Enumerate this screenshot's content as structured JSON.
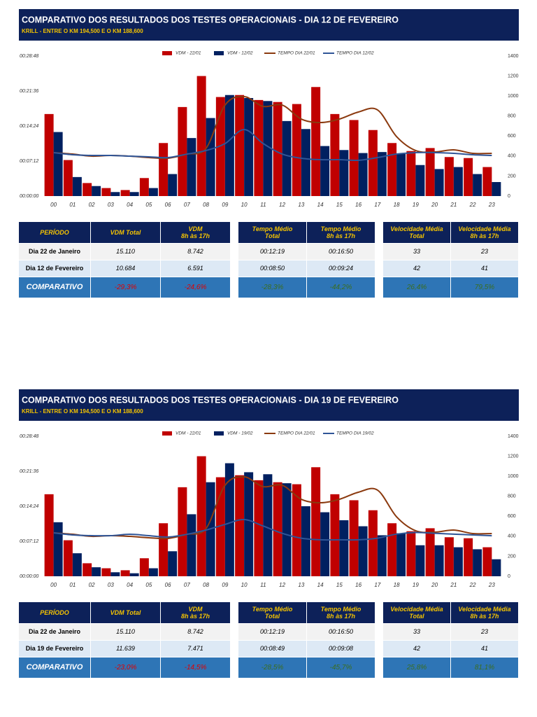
{
  "chart_data": [
    {
      "type": "bar",
      "title": "COMPARATIVO DOS RESULTADOS DOS TESTES OPERACIONAIS - DIA 12 DE FEVEREIRO",
      "subtitle": "KRILL - ENTRE O KM 194,500 E O  KM 188,600",
      "categories": [
        "00",
        "01",
        "02",
        "03",
        "04",
        "05",
        "06",
        "07",
        "08",
        "09",
        "10",
        "11",
        "12",
        "13",
        "14",
        "15",
        "16",
        "17",
        "18",
        "19",
        "20",
        "21",
        "22",
        "23"
      ],
      "series": [
        {
          "name": "VDM - 22/01",
          "type": "bar",
          "axis": "y2",
          "color": "#c00000",
          "values": [
            820,
            360,
            130,
            80,
            60,
            180,
            530,
            890,
            1200,
            990,
            1010,
            960,
            940,
            920,
            1090,
            820,
            760,
            660,
            530,
            450,
            480,
            390,
            380,
            290
          ]
        },
        {
          "name": "VDM - 12/02",
          "type": "bar",
          "axis": "y2",
          "color": "#002060",
          "values": [
            640,
            190,
            100,
            40,
            40,
            80,
            220,
            580,
            780,
            1010,
            980,
            950,
            750,
            670,
            500,
            460,
            430,
            440,
            420,
            310,
            270,
            290,
            220,
            140
          ]
        },
        {
          "name": "TEMPO DIA 22/01",
          "type": "line",
          "color": "#8b3a0f",
          "values": [
            536,
            518,
            492,
            501,
            492,
            475,
            467,
            518,
            588,
            1123,
            1227,
            1106,
            1123,
            950,
            907,
            950,
            1037,
            1063,
            734,
            562,
            544,
            570,
            527,
            527
          ]
        },
        {
          "name": "TEMPO DIA 12/02",
          "type": "line",
          "color": "#2f5597",
          "values": [
            536,
            510,
            501,
            501,
            492,
            484,
            475,
            518,
            562,
            648,
            821,
            648,
            518,
            467,
            449,
            449,
            441,
            475,
            518,
            536,
            536,
            527,
            510,
            501
          ]
        }
      ],
      "ylim": [
        0,
        1728
      ],
      "yticks": [
        {
          "value": 0,
          "label": "00:00:00"
        },
        {
          "value": 432,
          "label": "00:07:12"
        },
        {
          "value": 864,
          "label": "00:14:24"
        },
        {
          "value": 1296,
          "label": "00:21:36"
        },
        {
          "value": 1728,
          "label": "00:28:48"
        }
      ],
      "y2lim": [
        0,
        1400
      ],
      "y2ticks": [
        0,
        200,
        400,
        600,
        800,
        1000,
        1200,
        1400
      ]
    },
    {
      "type": "bar",
      "title": "COMPARATIVO DOS RESULTADOS DOS TESTES OPERACIONAIS - DIA 19 DE FEVEREIRO",
      "subtitle": "KRILL - ENTRE O KM 194,500 E O  KM 188,600",
      "categories": [
        "00",
        "01",
        "02",
        "03",
        "04",
        "05",
        "06",
        "07",
        "08",
        "09",
        "10",
        "11",
        "12",
        "13",
        "14",
        "15",
        "16",
        "17",
        "18",
        "19",
        "20",
        "21",
        "22",
        "23"
      ],
      "series": [
        {
          "name": "VDM - 22/01",
          "type": "bar",
          "axis": "y2",
          "color": "#c00000",
          "values": [
            820,
            360,
            130,
            80,
            60,
            180,
            530,
            890,
            1200,
            990,
            1010,
            960,
            940,
            920,
            1090,
            820,
            760,
            660,
            530,
            450,
            480,
            390,
            380,
            290
          ]
        },
        {
          "name": "VDM - 19/02",
          "type": "bar",
          "axis": "y2",
          "color": "#002060",
          "values": [
            540,
            230,
            90,
            40,
            30,
            80,
            250,
            620,
            940,
            1130,
            1040,
            1020,
            930,
            700,
            640,
            560,
            500,
            410,
            430,
            310,
            310,
            290,
            270,
            170
          ]
        },
        {
          "name": "TEMPO DIA 22/01",
          "type": "line",
          "color": "#8b3a0f",
          "values": [
            536,
            518,
            492,
            501,
            492,
            475,
            467,
            518,
            588,
            1123,
            1227,
            1106,
            1123,
            950,
            907,
            950,
            1037,
            1063,
            734,
            562,
            544,
            570,
            527,
            527
          ]
        },
        {
          "name": "TEMPO DIA 19/02",
          "type": "line",
          "color": "#2f5597",
          "values": [
            536,
            510,
            501,
            501,
            518,
            501,
            484,
            518,
            570,
            640,
            700,
            620,
            530,
            470,
            450,
            450,
            450,
            470,
            520,
            540,
            530,
            520,
            510,
            500
          ]
        }
      ],
      "ylim": [
        0,
        1728
      ],
      "yticks": [
        {
          "value": 0,
          "label": "00:00:00"
        },
        {
          "value": 432,
          "label": "00:07:12"
        },
        {
          "value": 864,
          "label": "00:14:24"
        },
        {
          "value": 1296,
          "label": "00:21:36"
        },
        {
          "value": 1728,
          "label": "00:28:48"
        }
      ],
      "y2lim": [
        0,
        1400
      ],
      "y2ticks": [
        0,
        200,
        400,
        600,
        800,
        1000,
        1200,
        1400
      ]
    }
  ],
  "tables": [
    {
      "header": [
        "PERÍODO",
        "VDM Total",
        "VDM\n8h às 17h",
        "Tempo Médio\nTotal",
        "Tempo Médio\n8h às 17h",
        "Velocidade Média\nTotal",
        "Velocidade Média\n8h às 17h"
      ],
      "rows": [
        [
          "Dia 22 de Janeiro",
          "15.110",
          "8.742",
          "00:12:19",
          "00:16:50",
          "33",
          "23"
        ],
        [
          "Dia 12 de Fevereiro",
          "10.684",
          "6.591",
          "00:08:50",
          "00:09:24",
          "42",
          "41"
        ],
        [
          "COMPARATIVO",
          "-29,3%",
          "-24,6%",
          "-28,3%",
          "-44,2%",
          "26,4%",
          "79,5%"
        ]
      ]
    },
    {
      "header": [
        "PERÍODO",
        "VDM Total",
        "VDM\n8h às 17h",
        "Tempo Médio\nTotal",
        "Tempo Médio\n8h às 17h",
        "Velocidade Média\nTotal",
        "Velocidade Média\n8h às 17h"
      ],
      "rows": [
        [
          "Dia 22 de Janeiro",
          "15.110",
          "8.742",
          "00:12:19",
          "00:16:50",
          "33",
          "23"
        ],
        [
          "Dia 19 de Fevereiro",
          "11.639",
          "7.471",
          "00:08:49",
          "00:09:08",
          "42",
          "41"
        ],
        [
          "COMPARATIVO",
          "-23,0%",
          "-14,5%",
          "-28,5%",
          "-45,7%",
          "25,8%",
          "81,1%"
        ]
      ]
    }
  ]
}
